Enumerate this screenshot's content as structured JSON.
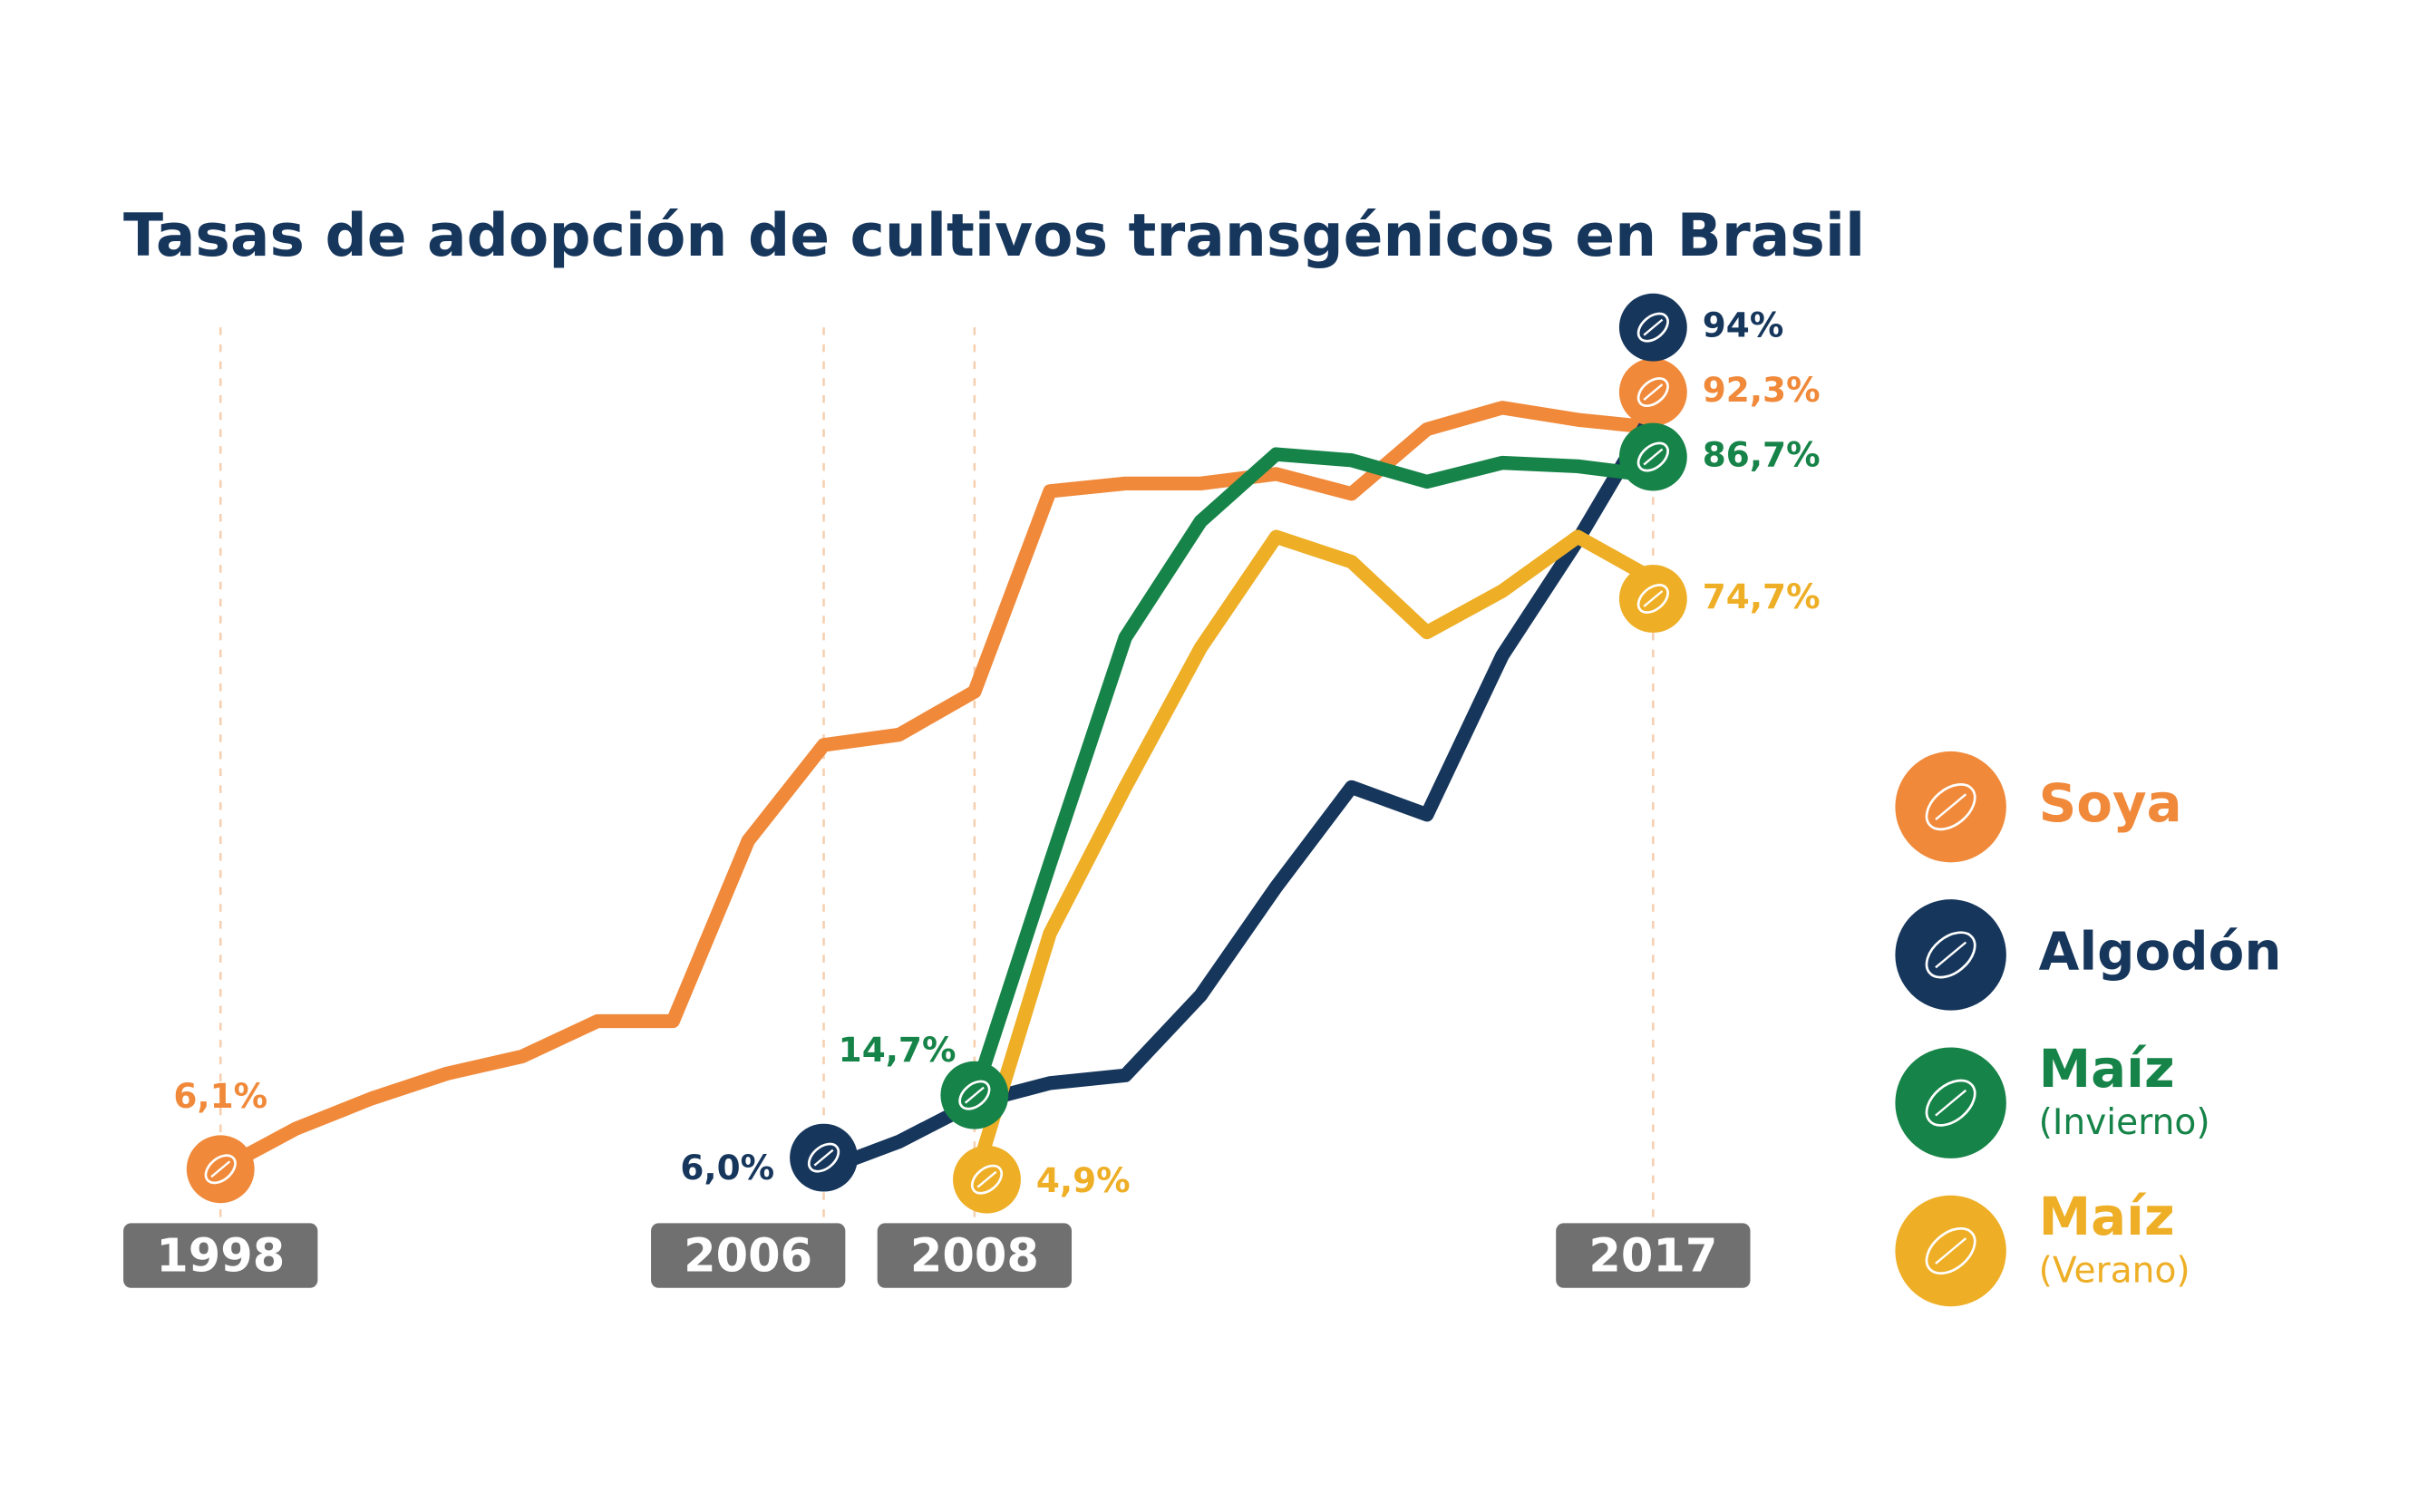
{
  "chart_data": {
    "type": "line",
    "title": "Tasas de adopción de cultivos transgénicos en Brasil",
    "x": [
      1998,
      1999,
      2000,
      2001,
      2002,
      2003,
      2004,
      2005,
      2006,
      2007,
      2008,
      2009,
      2010,
      2011,
      2012,
      2013,
      2014,
      2015,
      2016,
      2017
    ],
    "xlim": [
      1998,
      2017
    ],
    "xticks": [
      1998,
      2006,
      2008,
      2017
    ],
    "ylim": [
      0,
      100
    ],
    "series": [
      {
        "name": "Soya",
        "color": "#f0893a",
        "values": [
          6.1,
          10.8,
          14.3,
          17.2,
          19.2,
          23.3,
          23.3,
          44.3,
          55.4,
          56.6,
          61.6,
          84.9,
          85.8,
          85.8,
          86.9,
          84.6,
          92.1,
          94.6,
          93.2,
          92.3
        ],
        "value_labels": [
          "6,1%",
          null,
          null,
          null,
          null,
          null,
          null,
          null,
          null,
          null,
          null,
          null,
          null,
          null,
          null,
          null,
          null,
          null,
          null,
          "92,3%"
        ]
      },
      {
        "name": "Algodón",
        "color": "#16365c",
        "values": [
          null,
          null,
          null,
          null,
          null,
          null,
          null,
          null,
          6.0,
          9.3,
          13.8,
          16.1,
          17.0,
          26.3,
          38.9,
          50.5,
          47.3,
          65.8,
          79.2,
          94
        ],
        "value_labels": [
          null,
          null,
          null,
          null,
          null,
          null,
          null,
          null,
          "6,0%",
          null,
          null,
          null,
          null,
          null,
          null,
          null,
          null,
          null,
          null,
          "94%"
        ]
      },
      {
        "name": "Maíz",
        "subname": "(Invierno)",
        "color": "#168348",
        "values": [
          null,
          null,
          null,
          null,
          null,
          null,
          null,
          null,
          null,
          null,
          14.7,
          41.6,
          67.9,
          81.4,
          89.2,
          88.5,
          86.0,
          88.2,
          87.8,
          86.7
        ],
        "value_labels": [
          null,
          null,
          null,
          null,
          null,
          null,
          null,
          null,
          null,
          null,
          "14,7%",
          null,
          null,
          null,
          null,
          null,
          null,
          null,
          null,
          "86,7%"
        ]
      },
      {
        "name": "Maíz",
        "subname": "(Verano)",
        "color": "#eeae25",
        "values": [
          null,
          null,
          null,
          null,
          null,
          null,
          null,
          null,
          null,
          null,
          4.9,
          33.5,
          50.5,
          66.7,
          79.6,
          76.7,
          68.5,
          73.3,
          79.6,
          74.7
        ],
        "value_labels": [
          null,
          null,
          null,
          null,
          null,
          null,
          null,
          null,
          null,
          null,
          "4,9%",
          null,
          null,
          null,
          null,
          null,
          null,
          null,
          null,
          "74,7%"
        ]
      }
    ]
  }
}
